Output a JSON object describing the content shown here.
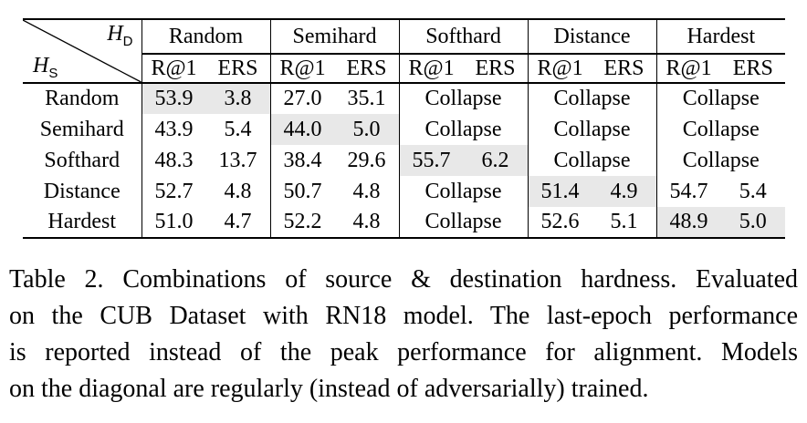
{
  "colors": {
    "highlight": "#e8e8e8",
    "rule": "#000000",
    "text": "#000000",
    "background": "#ffffff"
  },
  "table": {
    "corner": {
      "symbol": "H",
      "dest_sub": "D",
      "src_sub": "S"
    },
    "col_groups": [
      "Random",
      "Semihard",
      "Softhard",
      "Distance",
      "Hardest"
    ],
    "sub_headers": [
      "R@1",
      "ERS"
    ],
    "collapse_label": "Collapse",
    "rows": [
      {
        "label": "Random",
        "cells": [
          {
            "r1": "53.9",
            "ers": "3.8",
            "highlight": true
          },
          {
            "r1": "27.0",
            "ers": "35.1"
          },
          {
            "collapse": true
          },
          {
            "collapse": true
          },
          {
            "collapse": true
          }
        ]
      },
      {
        "label": "Semihard",
        "cells": [
          {
            "r1": "43.9",
            "ers": "5.4"
          },
          {
            "r1": "44.0",
            "ers": "5.0",
            "highlight": true
          },
          {
            "collapse": true
          },
          {
            "collapse": true
          },
          {
            "collapse": true
          }
        ]
      },
      {
        "label": "Softhard",
        "cells": [
          {
            "r1": "48.3",
            "ers": "13.7"
          },
          {
            "r1": "38.4",
            "ers": "29.6"
          },
          {
            "r1": "55.7",
            "ers": "6.2",
            "highlight": true
          },
          {
            "collapse": true
          },
          {
            "collapse": true
          }
        ]
      },
      {
        "label": "Distance",
        "cells": [
          {
            "r1": "52.7",
            "ers": "4.8"
          },
          {
            "r1": "50.7",
            "ers": "4.8"
          },
          {
            "collapse": true
          },
          {
            "r1": "51.4",
            "ers": "4.9",
            "highlight": true
          },
          {
            "r1": "54.7",
            "ers": "5.4"
          }
        ]
      },
      {
        "label": "Hardest",
        "cells": [
          {
            "r1": "51.0",
            "ers": "4.7"
          },
          {
            "r1": "52.2",
            "ers": "4.8"
          },
          {
            "collapse": true
          },
          {
            "r1": "52.6",
            "ers": "5.1"
          },
          {
            "r1": "48.9",
            "ers": "5.0",
            "highlight": true
          }
        ]
      }
    ]
  },
  "caption": {
    "lines": [
      "Table 2. Combinations of source & destination hardness. Evaluated",
      "on the CUB Dataset with RN18 model. The last-epoch performance",
      "is reported instead of the peak performance for alignment. Models",
      "on the diagonal are regularly (instead of adversarially) trained."
    ]
  }
}
